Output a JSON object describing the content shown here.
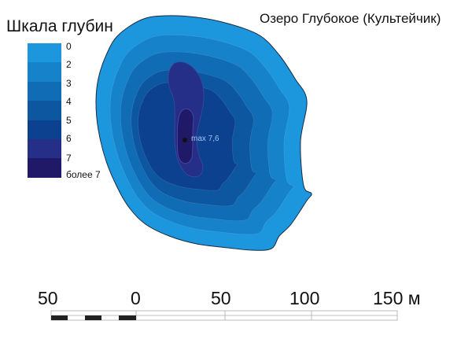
{
  "title": "Озеро Глубокое (Культейчик)",
  "legend": {
    "title": "Шкала глубин",
    "items": [
      {
        "label": "0",
        "color": "#1c97de"
      },
      {
        "label": "2",
        "color": "#1682ca"
      },
      {
        "label": "3",
        "color": "#106cb5"
      },
      {
        "label": "4",
        "color": "#0d56a0"
      },
      {
        "label": "5",
        "color": "#0c418f"
      },
      {
        "label": "6",
        "color": "#252f88"
      },
      {
        "label": "7",
        "color": "#201968"
      },
      {
        "label": "более 7"
      }
    ]
  },
  "max_depth_label": "max 7,6",
  "scale_bar": {
    "labels": [
      "50",
      "0",
      "50",
      "100",
      "150 м"
    ]
  }
}
